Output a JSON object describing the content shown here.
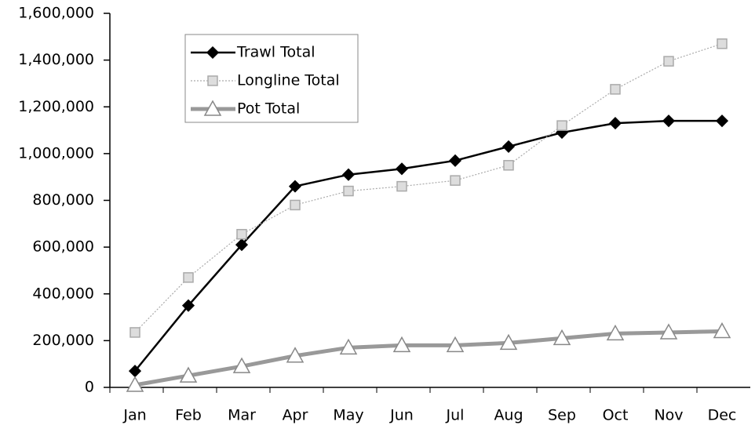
{
  "chart_data": {
    "type": "line",
    "categories": [
      "Jan",
      "Feb",
      "Mar",
      "Apr",
      "May",
      "Jun",
      "Jul",
      "Aug",
      "Sep",
      "Oct",
      "Nov",
      "Dec"
    ],
    "series": [
      {
        "name": "Trawl Total",
        "color": "#000000",
        "marker": "diamond",
        "values": [
          70000,
          350000,
          610000,
          860000,
          910000,
          935000,
          970000,
          1030000,
          1090000,
          1130000,
          1140000,
          1140000
        ]
      },
      {
        "name": "Longline Total",
        "color": "#aaaaaa",
        "marker": "square",
        "values": [
          235000,
          470000,
          655000,
          780000,
          840000,
          860000,
          885000,
          950000,
          1120000,
          1275000,
          1395000,
          1470000
        ]
      },
      {
        "name": "Pot Total",
        "color": "#999999",
        "marker": "triangle",
        "values": [
          10000,
          50000,
          90000,
          135000,
          170000,
          180000,
          180000,
          190000,
          210000,
          230000,
          235000,
          240000
        ]
      }
    ],
    "ylim": [
      0,
      1600000
    ],
    "yticks": [
      0,
      {
        "value": 200000,
        "label": "200,000"
      },
      {
        "value": 400000,
        "label": "400,000"
      },
      {
        "value": 600000,
        "label": "600,000"
      },
      {
        "value": 800000,
        "label": "800,000"
      },
      {
        "value": 1000000,
        "label": "1,000,000"
      },
      {
        "value": 1200000,
        "label": "1,200,000"
      },
      {
        "value": 1400000,
        "label": "1,400,000"
      },
      {
        "value": 1600000,
        "label": "1,600,000"
      }
    ],
    "legend": "upper left",
    "grid": false
  }
}
